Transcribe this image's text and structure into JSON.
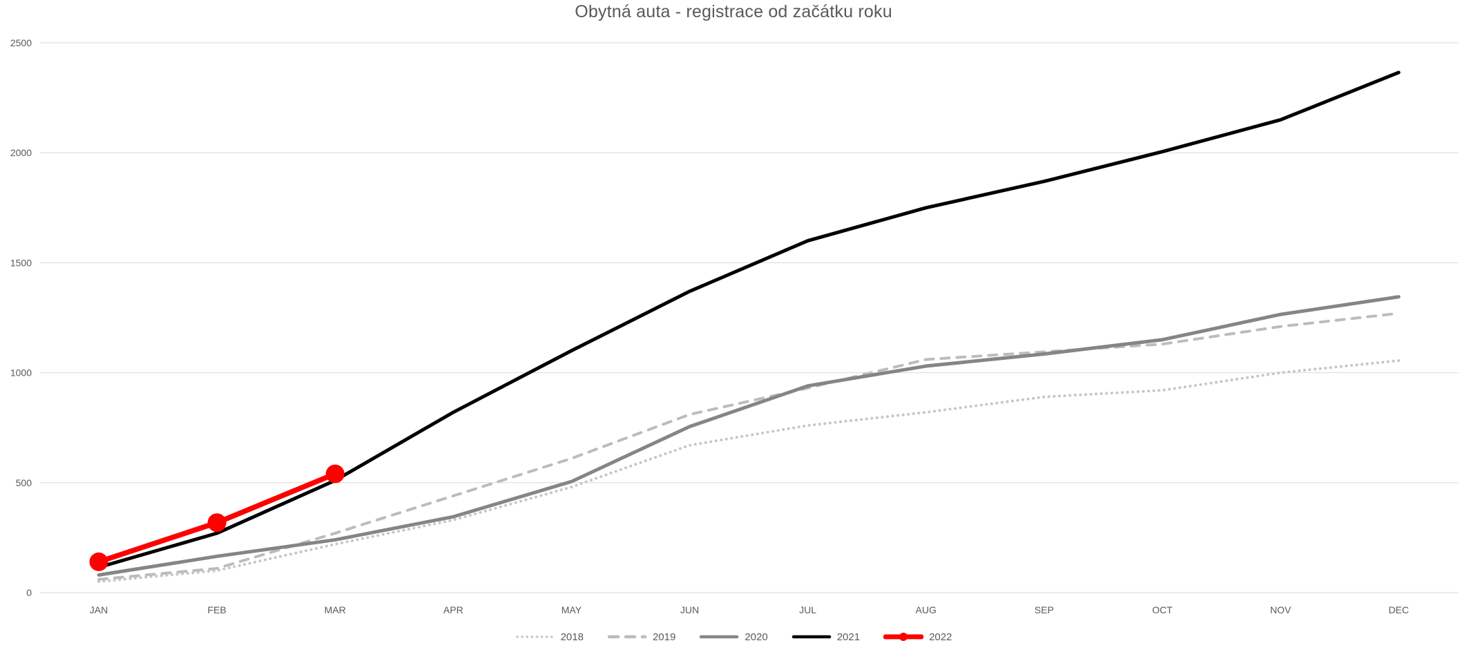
{
  "chart_data": {
    "type": "line",
    "title": "Obytná auta - registrace od začátku roku",
    "xlabel": "",
    "ylabel": "",
    "ylim": [
      0,
      2500
    ],
    "y_ticks": [
      0,
      500,
      1000,
      1500,
      2000,
      2500
    ],
    "grid": "horizontal",
    "gridline_color": "#d9d9d9",
    "axis_text_color": "#595959",
    "legend_position": "bottom-center",
    "categories": [
      "JAN",
      "FEB",
      "MAR",
      "APR",
      "MAY",
      "JUN",
      "JUL",
      "AUG",
      "SEP",
      "OCT",
      "NOV",
      "DEC"
    ],
    "series": [
      {
        "name": "2018",
        "style": "dotted",
        "color": "#c6c6c6",
        "values": [
          50,
          100,
          220,
          330,
          480,
          670,
          760,
          820,
          890,
          920,
          1000,
          1055
        ]
      },
      {
        "name": "2019",
        "style": "dashed",
        "color": "#bcbcbc",
        "values": [
          60,
          110,
          270,
          440,
          610,
          810,
          930,
          1060,
          1095,
          1130,
          1210,
          1270
        ]
      },
      {
        "name": "2020",
        "style": "solid",
        "color": "#858585",
        "values": [
          80,
          165,
          240,
          345,
          505,
          755,
          940,
          1030,
          1085,
          1150,
          1265,
          1345
        ]
      },
      {
        "name": "2021",
        "style": "solid",
        "color": "#000000",
        "values": [
          115,
          270,
          510,
          820,
          1100,
          1370,
          1600,
          1750,
          1870,
          2005,
          2150,
          2365
        ]
      },
      {
        "name": "2022",
        "style": "solid-marker",
        "color": "#fe0000",
        "values": [
          140,
          318,
          540,
          null,
          null,
          null,
          null,
          null,
          null,
          null,
          null,
          null
        ]
      }
    ]
  }
}
